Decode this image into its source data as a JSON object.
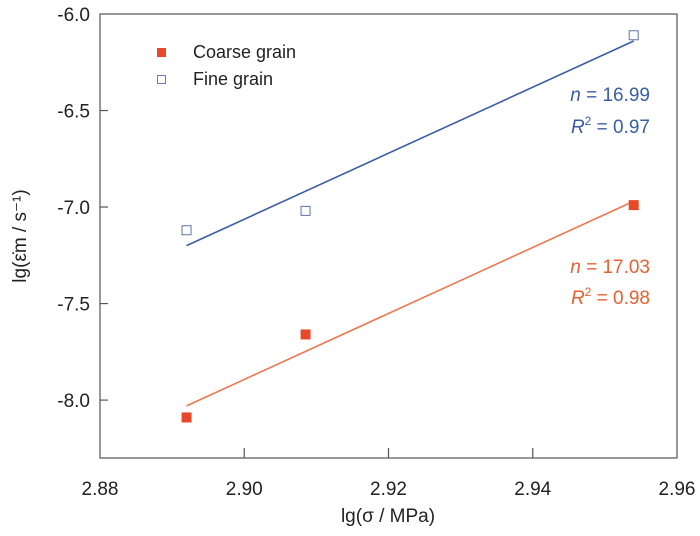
{
  "chart_data": {
    "type": "scatter",
    "title": "",
    "xlabel": "lg(σ / MPa)",
    "ylabel": "lg(ε̇m / s⁻¹)",
    "xlim": [
      2.88,
      2.96
    ],
    "ylim": [
      -8.3,
      -6.0
    ],
    "xticks": [
      2.88,
      2.9,
      2.92,
      2.94,
      2.96
    ],
    "xtick_labels": [
      "2.88",
      "2.90",
      "2.92",
      "2.94",
      "2.96"
    ],
    "yticks": [
      -6.0,
      -6.5,
      -7.0,
      -7.5,
      -8.0
    ],
    "ytick_labels": [
      "-6.0",
      "-6.5",
      "-7.0",
      "-7.5",
      "-8.0"
    ],
    "grid": false,
    "legend_position": "top-left",
    "series": [
      {
        "name": "Coarse grain",
        "marker": "filled-square",
        "color": "#e8482a",
        "line_color": "#f07850",
        "x": [
          2.892,
          2.9085,
          2.954
        ],
        "y": [
          -8.09,
          -7.66,
          -6.99
        ],
        "fit": {
          "x": [
            2.892,
            2.954
          ],
          "y": [
            -8.03,
            -6.97
          ]
        },
        "annotation": {
          "n_label": "n",
          "n_value": " = 17.03",
          "r2_label": "R",
          "r2_sup": "2",
          "r2_value": " = 0.98"
        }
      },
      {
        "name": "Fine grain",
        "marker": "open-square",
        "color": "#3a5da8",
        "line_color": "#3a5da8",
        "x": [
          2.892,
          2.9085,
          2.954
        ],
        "y": [
          -7.12,
          -7.02,
          -6.11
        ],
        "fit": {
          "x": [
            2.892,
            2.954
          ],
          "y": [
            -7.2,
            -6.14
          ]
        },
        "annotation": {
          "n_label": "n",
          "n_value": " = 16.99",
          "r2_label": "R",
          "r2_sup": "2",
          "r2_value": " = 0.97"
        }
      }
    ]
  }
}
